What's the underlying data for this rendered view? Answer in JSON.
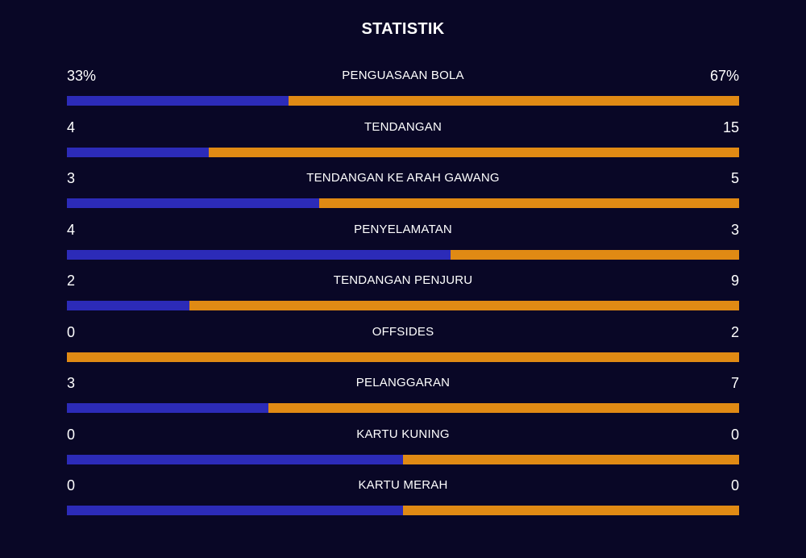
{
  "header": {
    "title": "STATISTIK"
  },
  "colors": {
    "background": "#090726",
    "home": "#2c2bb8",
    "away": "#e08a14"
  },
  "stats": [
    {
      "label": "PENGUASAAN BOLA",
      "left": "33%",
      "right": "67%",
      "left_share": 0.33
    },
    {
      "label": "TENDANGAN",
      "left": "4",
      "right": "15",
      "left_share": 0.211
    },
    {
      "label": "TENDANGAN KE ARAH GAWANG",
      "left": "3",
      "right": "5",
      "left_share": 0.375
    },
    {
      "label": "PENYELAMATAN",
      "left": "4",
      "right": "3",
      "left_share": 0.571
    },
    {
      "label": "TENDANGAN PENJURU",
      "left": "2",
      "right": "9",
      "left_share": 0.182
    },
    {
      "label": "OFFSIDES",
      "left": "0",
      "right": "2",
      "left_share": 0
    },
    {
      "label": "PELANGGARAN",
      "left": "3",
      "right": "7",
      "left_share": 0.3
    },
    {
      "label": "KARTU KUNING",
      "left": "0",
      "right": "0",
      "left_share": 0.5
    },
    {
      "label": "KARTU MERAH",
      "left": "0",
      "right": "0",
      "left_share": 0.5
    }
  ]
}
